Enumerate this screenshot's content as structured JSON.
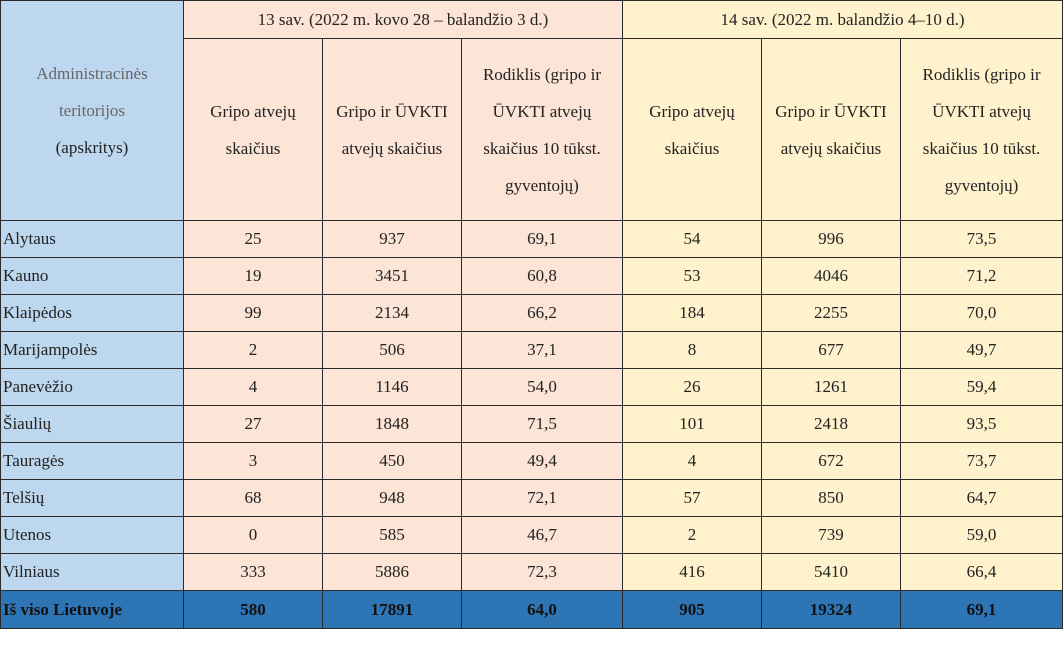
{
  "table": {
    "corner": {
      "label": "Administracinės teritorijos",
      "note": "(apskritys)"
    },
    "weeks": [
      "13 sav. (2022 m. kovo 28 – balandžio 3 d.)",
      "14 sav. (2022 m. balandžio 4–10 d.)"
    ],
    "columns": [
      "Gripo atvejų skaičius",
      "Gripo ir ŪVKTI atvejų skaičius",
      "Rodiklis (gripo ir ŪVKTI atvejų skaičius 10 tūkst. gyventojų)"
    ],
    "rows": [
      [
        "Alytaus",
        "25",
        "937",
        "69,1",
        "54",
        "996",
        "73,5"
      ],
      [
        "Kauno",
        "19",
        "3451",
        "60,8",
        "53",
        "4046",
        "71,2"
      ],
      [
        "Klaipėdos",
        "99",
        "2134",
        "66,2",
        "184",
        "2255",
        "70,0"
      ],
      [
        "Marijampolės",
        "2",
        "506",
        "37,1",
        "8",
        "677",
        "49,7"
      ],
      [
        "Panevėžio",
        "4",
        "1146",
        "54,0",
        "26",
        "1261",
        "59,4"
      ],
      [
        "Šiaulių",
        "27",
        "1848",
        "71,5",
        "101",
        "2418",
        "93,5"
      ],
      [
        "Tauragės",
        "3",
        "450",
        "49,4",
        "4",
        "672",
        "73,7"
      ],
      [
        "Telšių",
        "68",
        "948",
        "72,1",
        "57",
        "850",
        "64,7"
      ],
      [
        "Utenos",
        "0",
        "585",
        "46,7",
        "2",
        "739",
        "59,0"
      ],
      [
        "Vilniaus",
        "333",
        "5886",
        "72,3",
        "416",
        "5410",
        "66,4"
      ]
    ],
    "total": [
      "Iš viso Lietuvoje",
      "580",
      "17891",
      "64,0",
      "905",
      "19324",
      "69,1"
    ]
  }
}
